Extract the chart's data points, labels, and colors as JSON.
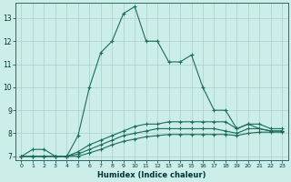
{
  "xlabel": "Humidex (Indice chaleur)",
  "bg_color": "#cceee8",
  "grid_color": "#aacccc",
  "line_color": "#1a6b5e",
  "xlim": [
    -0.5,
    23.5
  ],
  "ylim": [
    6.85,
    13.65
  ],
  "xticks": [
    0,
    1,
    2,
    3,
    4,
    5,
    6,
    7,
    8,
    9,
    10,
    11,
    12,
    13,
    14,
    15,
    16,
    17,
    18,
    19,
    20,
    21,
    22,
    23
  ],
  "yticks": [
    7,
    8,
    9,
    10,
    11,
    12,
    13
  ],
  "line1_x": [
    0,
    1,
    2,
    3,
    4,
    5,
    6,
    7,
    8,
    9,
    10,
    11,
    12,
    13,
    14,
    15,
    16,
    17,
    18,
    19,
    20,
    21,
    22,
    23
  ],
  "line1_y": [
    7.0,
    7.3,
    7.3,
    7.0,
    7.0,
    7.9,
    10.0,
    11.5,
    12.0,
    13.2,
    13.5,
    12.0,
    12.0,
    11.1,
    11.1,
    11.4,
    10.0,
    9.0,
    9.0,
    8.2,
    8.4,
    8.2,
    8.1,
    8.1
  ],
  "line2_x": [
    0,
    1,
    2,
    3,
    4,
    5,
    6,
    7,
    8,
    9,
    10,
    11,
    12,
    13,
    14,
    15,
    16,
    17,
    18,
    19,
    20,
    21,
    22,
    23
  ],
  "line2_y": [
    7.0,
    7.0,
    7.0,
    7.0,
    7.0,
    7.2,
    7.5,
    7.7,
    7.9,
    8.1,
    8.3,
    8.4,
    8.4,
    8.5,
    8.5,
    8.5,
    8.5,
    8.5,
    8.5,
    8.2,
    8.4,
    8.4,
    8.2,
    8.2
  ],
  "line3_x": [
    0,
    1,
    2,
    3,
    4,
    5,
    6,
    7,
    8,
    9,
    10,
    11,
    12,
    13,
    14,
    15,
    16,
    17,
    18,
    19,
    20,
    21,
    22,
    23
  ],
  "line3_y": [
    7.0,
    7.0,
    7.0,
    7.0,
    7.0,
    7.1,
    7.3,
    7.5,
    7.7,
    7.9,
    8.0,
    8.1,
    8.2,
    8.2,
    8.2,
    8.2,
    8.2,
    8.2,
    8.1,
    8.0,
    8.2,
    8.2,
    8.1,
    8.1
  ],
  "line4_x": [
    0,
    1,
    2,
    3,
    4,
    5,
    6,
    7,
    8,
    9,
    10,
    11,
    12,
    13,
    14,
    15,
    16,
    17,
    18,
    19,
    20,
    21,
    22,
    23
  ],
  "line4_y": [
    7.0,
    7.0,
    7.0,
    7.0,
    7.0,
    7.0,
    7.15,
    7.3,
    7.5,
    7.65,
    7.75,
    7.85,
    7.9,
    7.95,
    7.95,
    7.95,
    7.95,
    7.95,
    7.95,
    7.9,
    8.0,
    8.05,
    8.05,
    8.05
  ]
}
